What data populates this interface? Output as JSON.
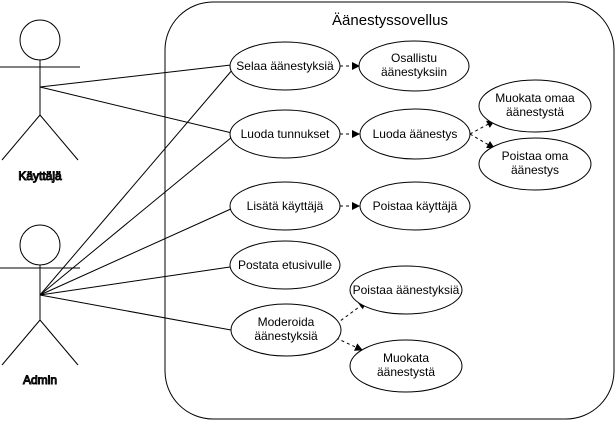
{
  "system": {
    "title": "Äänestyssovellus"
  },
  "actors": {
    "user": "Käyttäjä",
    "admin": "Admin"
  },
  "use_cases": {
    "browse_votes": [
      "Selaa äänestyksiä"
    ],
    "participate": [
      "Osallistu",
      "äänestyksiin"
    ],
    "create_account": [
      "Luoda tunnukset"
    ],
    "create_vote": [
      "Luoda äänestys"
    ],
    "edit_own_vote": [
      "Muokata omaa",
      "äänestystä"
    ],
    "delete_own_vote": [
      "Poistaa oma",
      "äänestys"
    ],
    "add_user": [
      "Lisätä käyttäjä"
    ],
    "delete_user": [
      "Poistaa käyttäjä"
    ],
    "post_frontpage": [
      "Postata etusivulle"
    ],
    "moderate": [
      "Moderoida",
      "äänestyksiä"
    ],
    "delete_votes": [
      "Poistaa äänestyksiä"
    ],
    "edit_vote": [
      "Muokata",
      "äänestystä"
    ]
  }
}
